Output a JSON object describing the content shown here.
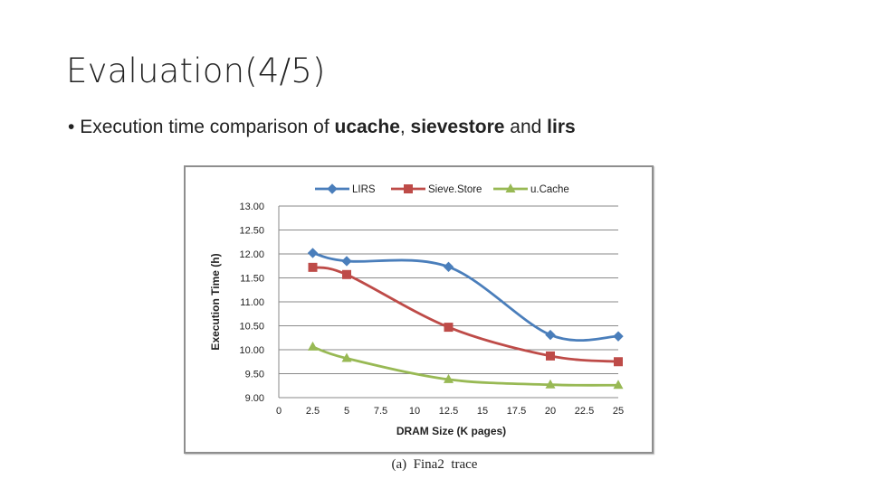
{
  "slide": {
    "title": "Evaluation(4/5)",
    "bullet": {
      "marker": "•",
      "prefix": "Execution time comparison of ",
      "term1": "ucache",
      "sep1": ", ",
      "term2": "sievestore",
      "sep2": " and ",
      "term3": "lirs"
    },
    "caption": "(a)  Fina2  trace"
  },
  "chart_data": {
    "type": "line",
    "xlabel": "DRAM Size (K pages)",
    "ylabel": "Execution Time (h)",
    "x_ticks": [
      0,
      2.5,
      5,
      7.5,
      10,
      12.5,
      15,
      17.5,
      20,
      22.5,
      25
    ],
    "y_ticks": [
      "9.00",
      "9.50",
      "10.00",
      "10.50",
      "11.00",
      "11.50",
      "12.00",
      "12.50",
      "13.00"
    ],
    "xlim": [
      0,
      25
    ],
    "ylim": [
      9,
      13
    ],
    "grid": "horizontal",
    "legend_position": "top",
    "series": [
      {
        "name": "LIRS",
        "color": "#4a7ebb",
        "marker": "diamond",
        "x": [
          2.5,
          5,
          12.5,
          20,
          25
        ],
        "y": [
          12.02,
          11.85,
          11.73,
          10.31,
          10.28
        ]
      },
      {
        "name": "Sieve.Store",
        "color": "#be4b48",
        "marker": "square",
        "x": [
          2.5,
          5,
          12.5,
          20,
          25
        ],
        "y": [
          11.72,
          11.57,
          10.47,
          9.87,
          9.75
        ]
      },
      {
        "name": "u.Cache",
        "color": "#98b954",
        "marker": "triangle",
        "x": [
          2.5,
          5,
          12.5,
          20,
          25
        ],
        "y": [
          10.06,
          9.82,
          9.38,
          9.27,
          9.26
        ]
      }
    ]
  }
}
